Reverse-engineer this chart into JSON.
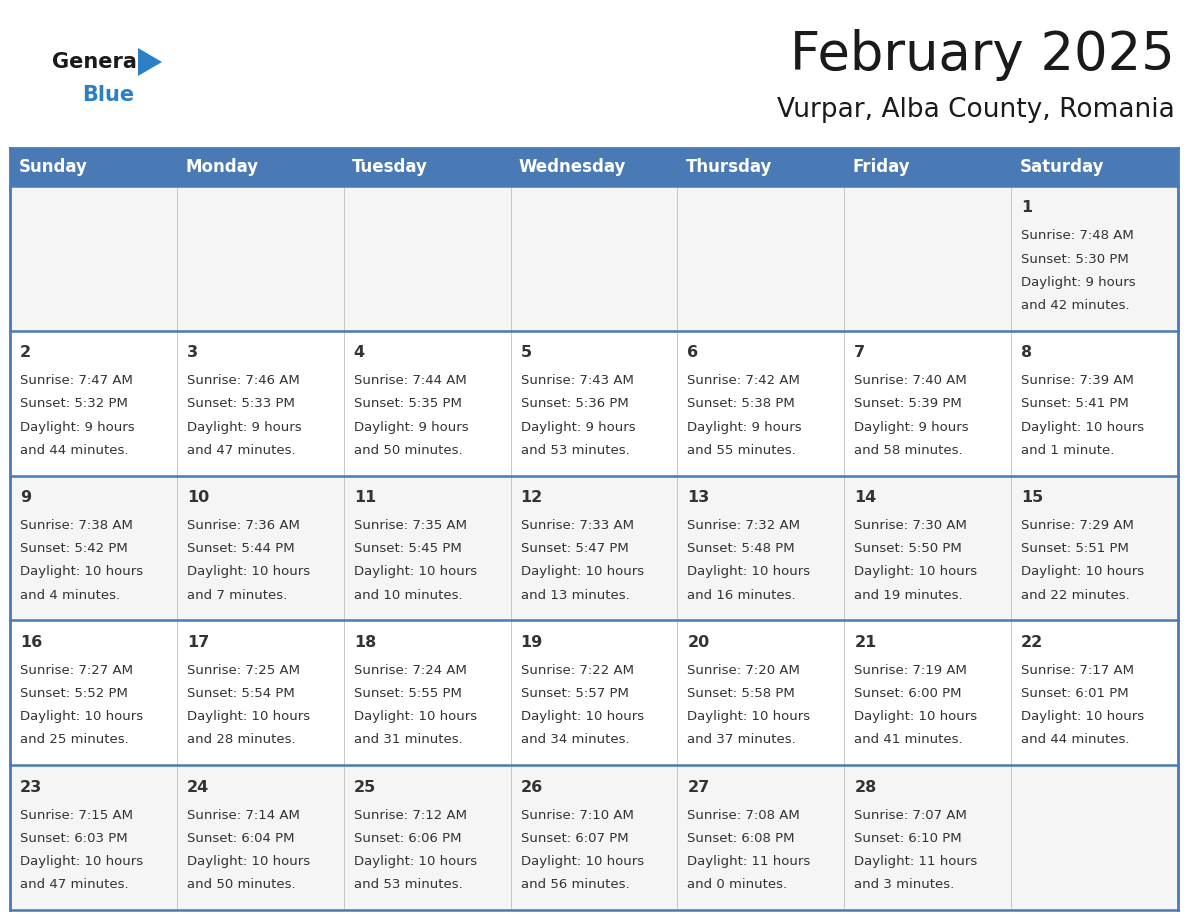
{
  "title": "February 2025",
  "subtitle": "Vurpar, Alba County, Romania",
  "header_color": "#4a7ab5",
  "header_text_color": "#ffffff",
  "cell_bg_even": "#f5f5f5",
  "cell_bg_odd": "#ffffff",
  "border_color": "#4a7ab5",
  "text_color": "#333333",
  "day_num_color": "#333333",
  "day_headers": [
    "Sunday",
    "Monday",
    "Tuesday",
    "Wednesday",
    "Thursday",
    "Friday",
    "Saturday"
  ],
  "days": [
    {
      "day": 1,
      "col": 6,
      "row": 0,
      "sunrise": "7:48 AM",
      "sunset": "5:30 PM",
      "daylight": "9 hours and 42 minutes."
    },
    {
      "day": 2,
      "col": 0,
      "row": 1,
      "sunrise": "7:47 AM",
      "sunset": "5:32 PM",
      "daylight": "9 hours and 44 minutes."
    },
    {
      "day": 3,
      "col": 1,
      "row": 1,
      "sunrise": "7:46 AM",
      "sunset": "5:33 PM",
      "daylight": "9 hours and 47 minutes."
    },
    {
      "day": 4,
      "col": 2,
      "row": 1,
      "sunrise": "7:44 AM",
      "sunset": "5:35 PM",
      "daylight": "9 hours and 50 minutes."
    },
    {
      "day": 5,
      "col": 3,
      "row": 1,
      "sunrise": "7:43 AM",
      "sunset": "5:36 PM",
      "daylight": "9 hours and 53 minutes."
    },
    {
      "day": 6,
      "col": 4,
      "row": 1,
      "sunrise": "7:42 AM",
      "sunset": "5:38 PM",
      "daylight": "9 hours and 55 minutes."
    },
    {
      "day": 7,
      "col": 5,
      "row": 1,
      "sunrise": "7:40 AM",
      "sunset": "5:39 PM",
      "daylight": "9 hours and 58 minutes."
    },
    {
      "day": 8,
      "col": 6,
      "row": 1,
      "sunrise": "7:39 AM",
      "sunset": "5:41 PM",
      "daylight": "10 hours and 1 minute."
    },
    {
      "day": 9,
      "col": 0,
      "row": 2,
      "sunrise": "7:38 AM",
      "sunset": "5:42 PM",
      "daylight": "10 hours and 4 minutes."
    },
    {
      "day": 10,
      "col": 1,
      "row": 2,
      "sunrise": "7:36 AM",
      "sunset": "5:44 PM",
      "daylight": "10 hours and 7 minutes."
    },
    {
      "day": 11,
      "col": 2,
      "row": 2,
      "sunrise": "7:35 AM",
      "sunset": "5:45 PM",
      "daylight": "10 hours and 10 minutes."
    },
    {
      "day": 12,
      "col": 3,
      "row": 2,
      "sunrise": "7:33 AM",
      "sunset": "5:47 PM",
      "daylight": "10 hours and 13 minutes."
    },
    {
      "day": 13,
      "col": 4,
      "row": 2,
      "sunrise": "7:32 AM",
      "sunset": "5:48 PM",
      "daylight": "10 hours and 16 minutes."
    },
    {
      "day": 14,
      "col": 5,
      "row": 2,
      "sunrise": "7:30 AM",
      "sunset": "5:50 PM",
      "daylight": "10 hours and 19 minutes."
    },
    {
      "day": 15,
      "col": 6,
      "row": 2,
      "sunrise": "7:29 AM",
      "sunset": "5:51 PM",
      "daylight": "10 hours and 22 minutes."
    },
    {
      "day": 16,
      "col": 0,
      "row": 3,
      "sunrise": "7:27 AM",
      "sunset": "5:52 PM",
      "daylight": "10 hours and 25 minutes."
    },
    {
      "day": 17,
      "col": 1,
      "row": 3,
      "sunrise": "7:25 AM",
      "sunset": "5:54 PM",
      "daylight": "10 hours and 28 minutes."
    },
    {
      "day": 18,
      "col": 2,
      "row": 3,
      "sunrise": "7:24 AM",
      "sunset": "5:55 PM",
      "daylight": "10 hours and 31 minutes."
    },
    {
      "day": 19,
      "col": 3,
      "row": 3,
      "sunrise": "7:22 AM",
      "sunset": "5:57 PM",
      "daylight": "10 hours and 34 minutes."
    },
    {
      "day": 20,
      "col": 4,
      "row": 3,
      "sunrise": "7:20 AM",
      "sunset": "5:58 PM",
      "daylight": "10 hours and 37 minutes."
    },
    {
      "day": 21,
      "col": 5,
      "row": 3,
      "sunrise": "7:19 AM",
      "sunset": "6:00 PM",
      "daylight": "10 hours and 41 minutes."
    },
    {
      "day": 22,
      "col": 6,
      "row": 3,
      "sunrise": "7:17 AM",
      "sunset": "6:01 PM",
      "daylight": "10 hours and 44 minutes."
    },
    {
      "day": 23,
      "col": 0,
      "row": 4,
      "sunrise": "7:15 AM",
      "sunset": "6:03 PM",
      "daylight": "10 hours and 47 minutes."
    },
    {
      "day": 24,
      "col": 1,
      "row": 4,
      "sunrise": "7:14 AM",
      "sunset": "6:04 PM",
      "daylight": "10 hours and 50 minutes."
    },
    {
      "day": 25,
      "col": 2,
      "row": 4,
      "sunrise": "7:12 AM",
      "sunset": "6:06 PM",
      "daylight": "10 hours and 53 minutes."
    },
    {
      "day": 26,
      "col": 3,
      "row": 4,
      "sunrise": "7:10 AM",
      "sunset": "6:07 PM",
      "daylight": "10 hours and 56 minutes."
    },
    {
      "day": 27,
      "col": 4,
      "row": 4,
      "sunrise": "7:08 AM",
      "sunset": "6:08 PM",
      "daylight": "11 hours and 0 minutes."
    },
    {
      "day": 28,
      "col": 5,
      "row": 4,
      "sunrise": "7:07 AM",
      "sunset": "6:10 PM",
      "daylight": "11 hours and 3 minutes."
    }
  ],
  "logo_color_general": "#1a1a1a",
  "logo_color_blue": "#2a7fc5",
  "logo_triangle_color": "#2a7fc5",
  "n_rows": 5,
  "n_cols": 7
}
